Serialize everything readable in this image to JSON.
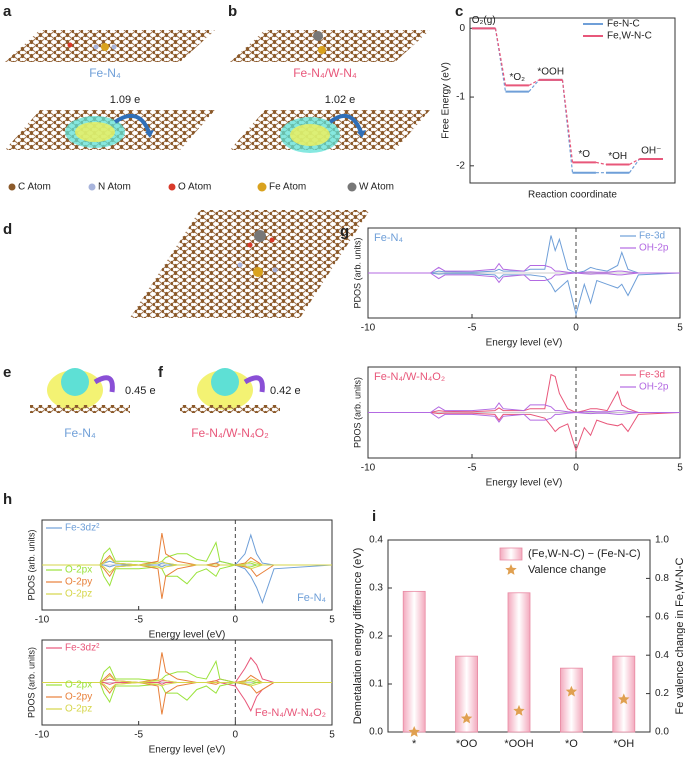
{
  "panel_labels": [
    "a",
    "b",
    "c",
    "d",
    "e",
    "f",
    "g",
    "h",
    "i"
  ],
  "a": {
    "caption": "Fe-N₄",
    "charge": "1.09 e"
  },
  "b": {
    "caption": "Fe-N₄/W-N₄",
    "charge": "1.02 e"
  },
  "atom_legend": [
    "C Atom",
    "N Atom",
    "O Atom",
    "Fe Atom",
    "W Atom"
  ],
  "e": {
    "caption": "Fe-N₄",
    "charge": "0.45 e"
  },
  "f": {
    "caption": "Fe-N₄/W-N₄O₂",
    "charge": "0.42 e"
  },
  "chart_data": [
    {
      "type": "energy",
      "ylabel": "Free Energy (eV)",
      "xlabel": "Reaction coordinate",
      "categories": [
        "O₂(g)",
        "*O₂",
        "*OOH",
        "*O",
        "*OH",
        "OH⁻"
      ],
      "ylim": [
        -2.25,
        0.15
      ],
      "yticks": [
        0,
        -1,
        -2
      ],
      "legend": "top-right",
      "series": [
        {
          "name": "Fe-N-C",
          "color": "#6f9fd8",
          "values": [
            0,
            -0.92,
            -0.75,
            -2.1,
            -2.1,
            -1.9
          ]
        },
        {
          "name": "Fe,W-N-C",
          "color": "#e8577a",
          "values": [
            0,
            -0.83,
            -0.75,
            -1.95,
            -1.98,
            -1.9
          ]
        }
      ]
    },
    {
      "type": "line",
      "title": "Fe-N₄",
      "title_color": "#6f9fd8",
      "xlabel": "Energy level (eV)",
      "ylabel": "PDOS (arb. units)",
      "xlim": [
        -10,
        5
      ],
      "xticks": [
        -10,
        -5,
        0,
        5
      ],
      "ylim": [
        -1.2,
        1.2
      ],
      "vline": 0,
      "legend": "top-right",
      "x": [
        -10,
        -7,
        -6.6,
        -6.3,
        -5,
        -3.9,
        -3.7,
        -3.5,
        -2.5,
        -2.2,
        -1.5,
        -1.2,
        -1,
        -0.8,
        -0.4,
        0,
        0.4,
        0.7,
        1,
        1.5,
        2,
        2.2,
        2.5,
        3,
        5
      ],
      "series": [
        {
          "name": "Fe-3d",
          "color": "#6f9fd8",
          "values": [
            0,
            0,
            0.05,
            0.03,
            0.02,
            0.05,
            0.1,
            0.05,
            0.05,
            0.1,
            0.1,
            1.0,
            0.6,
            0.9,
            0.1,
            0,
            0.05,
            0.15,
            0.1,
            0.05,
            0.2,
            0.55,
            0.1,
            0,
            0
          ],
          "values_down": [
            0,
            0,
            -0.03,
            -0.02,
            -0.02,
            -0.05,
            -0.15,
            -0.05,
            -0.05,
            -0.05,
            -0.1,
            -0.3,
            -0.5,
            -0.4,
            -0.2,
            -1.1,
            -0.3,
            -0.8,
            -0.2,
            -0.3,
            -0.4,
            -0.3,
            -0.6,
            -0.05,
            0
          ]
        },
        {
          "name": "OH-2p",
          "color": "#b36ae2",
          "values": [
            0,
            0,
            0.15,
            0.05,
            0.05,
            0.1,
            0.25,
            0.1,
            0.05,
            0.2,
            0.2,
            0.15,
            0.05,
            0.05,
            0.02,
            0,
            0.02,
            0.03,
            0.02,
            0.02,
            0.05,
            0.05,
            0.03,
            0,
            0
          ],
          "values_down": [
            0,
            0,
            -0.15,
            -0.05,
            -0.05,
            -0.1,
            -0.25,
            -0.1,
            -0.05,
            -0.2,
            -0.2,
            -0.15,
            -0.05,
            -0.05,
            -0.02,
            0,
            -0.02,
            -0.03,
            -0.02,
            -0.02,
            -0.05,
            -0.05,
            -0.03,
            0,
            0
          ]
        }
      ]
    },
    {
      "type": "line",
      "title": "Fe-N₄/W-N₄O₂",
      "title_color": "#e8577a",
      "xlabel": "Energy level (eV)",
      "ylabel": "PDOS (arb. units)",
      "xlim": [
        -10,
        5
      ],
      "xticks": [
        -10,
        -5,
        0,
        5
      ],
      "ylim": [
        -1.2,
        1.2
      ],
      "vline": 0,
      "legend": "top-right",
      "x": [
        -10,
        -7,
        -6.6,
        -6.3,
        -5,
        -3.9,
        -3.7,
        -3.5,
        -2.5,
        -2.2,
        -1.5,
        -1.2,
        -1,
        -0.8,
        -0.4,
        0,
        0.4,
        0.7,
        1,
        1.5,
        2,
        2.2,
        2.5,
        3,
        5
      ],
      "series": [
        {
          "name": "Fe-3d",
          "color": "#e8577a",
          "values": [
            0,
            0,
            0.05,
            0.03,
            0.02,
            0.05,
            0.12,
            0.05,
            0.05,
            0.1,
            0.1,
            1.0,
            0.95,
            0.5,
            0.1,
            0,
            0.05,
            0.1,
            0.1,
            0.05,
            0.55,
            0.2,
            0.1,
            0,
            0
          ],
          "values_down": [
            0,
            0,
            -0.03,
            -0.02,
            -0.02,
            -0.05,
            -0.2,
            -0.05,
            -0.05,
            -0.05,
            -0.15,
            -0.35,
            -0.5,
            -0.4,
            -0.3,
            -1.0,
            -0.4,
            -0.6,
            -0.2,
            -0.3,
            -0.35,
            -0.3,
            -0.5,
            -0.05,
            0
          ]
        },
        {
          "name": "OH-2p",
          "color": "#b36ae2",
          "values": [
            0,
            0,
            0.15,
            0.05,
            0.05,
            0.1,
            0.25,
            0.1,
            0.05,
            0.2,
            0.2,
            0.15,
            0.05,
            0.05,
            0.02,
            0,
            0.02,
            0.03,
            0.02,
            0.02,
            0.05,
            0.05,
            0.03,
            0,
            0
          ],
          "values_down": [
            0,
            0,
            -0.15,
            -0.05,
            -0.05,
            -0.1,
            -0.25,
            -0.1,
            -0.05,
            -0.2,
            -0.2,
            -0.15,
            -0.05,
            -0.05,
            -0.02,
            0,
            -0.02,
            -0.03,
            -0.02,
            -0.02,
            -0.05,
            -0.05,
            -0.03,
            0,
            0
          ]
        }
      ]
    },
    {
      "type": "line",
      "title": "Fe-N₄",
      "title_color": "#6f9fd8",
      "xlabel": "Energy level (eV)",
      "ylabel": "PDOS (arb. units)",
      "xlim": [
        -10,
        5
      ],
      "xticks": [
        -10,
        -5,
        0,
        5
      ],
      "ylim": [
        -1.2,
        1.2
      ],
      "vline": 0,
      "legend": "left",
      "x": [
        -10,
        -7,
        -6.8,
        -6.5,
        -6.2,
        -5,
        -4,
        -3.8,
        -3.6,
        -3,
        -2.5,
        -2,
        -1.5,
        -1,
        -0.8,
        0,
        0.5,
        0.8,
        1.1,
        1.4,
        2,
        5
      ],
      "series": [
        {
          "name": "Fe-3dz²",
          "color": "#6f9fd8",
          "values": [
            0,
            0,
            0.05,
            0.1,
            0.05,
            0,
            0,
            0.05,
            0.05,
            0,
            0,
            0,
            0,
            0.05,
            0.1,
            0,
            0.3,
            0.8,
            0.3,
            0.05,
            0,
            0
          ],
          "values_down": [
            0,
            0,
            0,
            -0.05,
            0,
            0,
            0,
            -0.05,
            0,
            0,
            0,
            0,
            0,
            0,
            0,
            0,
            -0.1,
            -0.3,
            -0.6,
            -1.0,
            -0.1,
            0
          ]
        },
        {
          "name": "O-2px",
          "color": "#9be33c",
          "values": [
            0,
            0,
            0.3,
            0.45,
            0.1,
            0.1,
            0.05,
            0.1,
            0.2,
            0.3,
            0.3,
            0.15,
            0.1,
            0.6,
            0.1,
            0,
            0.05,
            0.05,
            0,
            0,
            0,
            0
          ],
          "values_down": [
            0,
            0,
            -0.3,
            -0.55,
            -0.1,
            -0.1,
            -0.05,
            -0.1,
            -0.3,
            -0.3,
            -0.5,
            -0.2,
            -0.1,
            -0.3,
            -0.1,
            0,
            -0.05,
            -0.05,
            0,
            0,
            0,
            0
          ]
        },
        {
          "name": "O-2py",
          "color": "#e8803a",
          "values": [
            0,
            0,
            0.1,
            0.25,
            0.05,
            0,
            0.1,
            0.85,
            0.3,
            0.1,
            0.05,
            0,
            0,
            0.05,
            0,
            0,
            0.05,
            0.2,
            0.1,
            0,
            0,
            0
          ],
          "values_down": [
            0,
            0,
            -0.1,
            -0.3,
            -0.05,
            0,
            -0.1,
            -0.9,
            -0.3,
            -0.1,
            -0.05,
            0,
            0,
            -0.05,
            0,
            0,
            -0.05,
            -0.1,
            -0.3,
            -0.2,
            0,
            0
          ]
        },
        {
          "name": "O-2pz",
          "color": "#d6d64a",
          "values": [
            0,
            0,
            0.05,
            0.2,
            0.05,
            0,
            0.05,
            0.1,
            0.05,
            0,
            0,
            0,
            0,
            0,
            0,
            0,
            0.02,
            0.1,
            0.05,
            0,
            0,
            0
          ],
          "values_down": [
            0,
            0,
            -0.05,
            -0.2,
            -0.05,
            0,
            -0.05,
            -0.1,
            -0.05,
            0,
            0,
            0,
            0,
            0,
            0,
            0,
            -0.02,
            -0.1,
            -0.05,
            0,
            0,
            0
          ]
        }
      ]
    },
    {
      "type": "line",
      "title": "Fe-N₄/W-N₄O₂",
      "title_color": "#e8577a",
      "xlabel": "Energy level (eV)",
      "ylabel": "PDOS (arb. units)",
      "xlim": [
        -10,
        5
      ],
      "xticks": [
        -10,
        -5,
        0,
        5
      ],
      "ylim": [
        -1.2,
        1.2
      ],
      "vline": 0,
      "legend": "left",
      "x": [
        -10,
        -7,
        -6.8,
        -6.5,
        -6.2,
        -5,
        -4,
        -3.8,
        -3.6,
        -3,
        -2.5,
        -2,
        -1.5,
        -1,
        -0.8,
        0,
        0.5,
        0.8,
        1.1,
        1.4,
        2,
        5
      ],
      "series": [
        {
          "name": "Fe-3dz²",
          "color": "#e8577a",
          "values": [
            0,
            0,
            0.05,
            0.1,
            0.05,
            0,
            0,
            0.05,
            0.05,
            0,
            0,
            0,
            0,
            0.05,
            0.1,
            0,
            0.4,
            0.7,
            0.5,
            0.1,
            0,
            0
          ],
          "values_down": [
            0,
            0,
            0,
            -0.05,
            0,
            0,
            0,
            -0.05,
            0,
            0,
            0,
            0,
            0,
            0,
            0,
            -0.1,
            -0.5,
            -0.8,
            -0.4,
            -0.2,
            0,
            0
          ]
        },
        {
          "name": "O-2px",
          "color": "#9be33c",
          "values": [
            0,
            0,
            0.3,
            0.45,
            0.1,
            0.1,
            0.05,
            0.1,
            0.2,
            0.3,
            0.3,
            0.15,
            0.1,
            0.6,
            0.1,
            0,
            0.05,
            0.05,
            0,
            0,
            0,
            0
          ],
          "values_down": [
            0,
            0,
            -0.3,
            -0.55,
            -0.1,
            -0.1,
            -0.05,
            -0.1,
            -0.3,
            -0.3,
            -0.5,
            -0.2,
            -0.1,
            -0.3,
            -0.1,
            0,
            -0.05,
            -0.05,
            0,
            0,
            0,
            0
          ]
        },
        {
          "name": "O-2py",
          "color": "#e8803a",
          "values": [
            0,
            0,
            0.1,
            0.25,
            0.05,
            0,
            0.1,
            0.85,
            0.3,
            0.1,
            0.05,
            0,
            0,
            0.05,
            0,
            0,
            0.05,
            0.2,
            0.1,
            0,
            0,
            0
          ],
          "values_down": [
            0,
            0,
            -0.1,
            -0.3,
            -0.05,
            0,
            -0.1,
            -0.9,
            -0.3,
            -0.1,
            -0.05,
            0,
            0,
            -0.05,
            0,
            0,
            -0.05,
            -0.1,
            -0.3,
            -0.2,
            0,
            0
          ]
        },
        {
          "name": "O-2pz",
          "color": "#d6d64a",
          "values": [
            0,
            0,
            0.05,
            0.2,
            0.05,
            0,
            0.05,
            0.1,
            0.05,
            0,
            0,
            0,
            0,
            0,
            0,
            0,
            0.02,
            0.1,
            0.05,
            0,
            0,
            0
          ],
          "values_down": [
            0,
            0,
            -0.05,
            -0.2,
            -0.05,
            0,
            -0.05,
            -0.1,
            -0.05,
            0,
            0,
            0,
            0,
            0,
            0,
            0,
            -0.02,
            -0.1,
            -0.05,
            0,
            0,
            0
          ]
        }
      ]
    },
    {
      "type": "bar",
      "ylabel": "Demetalation energy difference (eV)",
      "y2label": "Fe valence change in Fe,W-N-C",
      "categories": [
        "*",
        "*OO",
        "*OOH",
        "*O",
        "*OH"
      ],
      "ylim": [
        0,
        0.4
      ],
      "yticks": [
        {
          "value": 0,
          "label": "0.0"
        },
        0.1,
        0.2,
        0.3,
        0.4
      ],
      "y2lim": [
        0,
        1
      ],
      "y2ticks": [
        {
          "value": 0,
          "label": "0.0"
        },
        0.2,
        0.4,
        0.6,
        0.8,
        {
          "value": 1,
          "label": "1.0"
        }
      ],
      "legend": "top",
      "series": [
        {
          "name": "(Fe,W-N-C) − (Fe-N-C)",
          "color": "#e88aa3",
          "values": [
            0.293,
            0.158,
            0.29,
            0.133,
            0.158
          ]
        },
        {
          "name": "Valence change",
          "color": "#e0a050",
          "axis": "y2",
          "values": [
            0.0,
            0.07,
            0.11,
            0.21,
            0.17
          ]
        }
      ]
    }
  ]
}
